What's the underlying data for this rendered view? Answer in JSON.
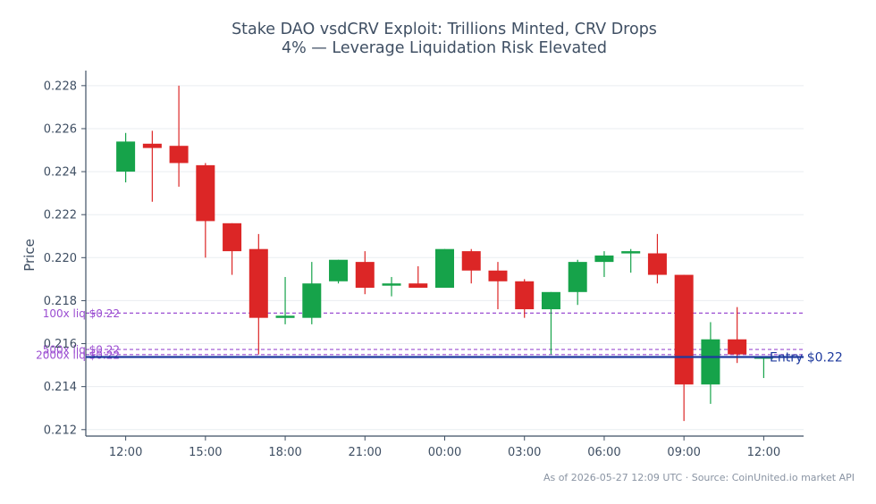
{
  "chart_data": {
    "type": "candlestick",
    "title_lines": [
      "Stake DAO vsdCRV Exploit: Trillions Minted, CRV Drops",
      "4% — Leverage Liquidation Risk Elevated"
    ],
    "ylabel": "Price",
    "xlabel": "",
    "ylim": [
      0.2117,
      0.2287
    ],
    "y_ticks": [
      0.212,
      0.214,
      0.216,
      0.218,
      0.22,
      0.222,
      0.224,
      0.226,
      0.228
    ],
    "y_tick_labels": [
      "0.212",
      "0.214",
      "0.216",
      "0.218",
      "0.220",
      "0.222",
      "0.224",
      "0.226",
      "0.228"
    ],
    "x_range_hours": [
      -1.5,
      25.5
    ],
    "x_ticks": [
      {
        "hour": 0,
        "label": "12:00"
      },
      {
        "hour": 3,
        "label": "15:00"
      },
      {
        "hour": 6,
        "label": "18:00"
      },
      {
        "hour": 9,
        "label": "21:00"
      },
      {
        "hour": 12,
        "label": "00:00"
      },
      {
        "hour": 15,
        "label": "03:00"
      },
      {
        "hour": 18,
        "label": "06:00"
      },
      {
        "hour": 21,
        "label": "09:00"
      },
      {
        "hour": 24,
        "label": "12:00"
      }
    ],
    "grid": true,
    "colors": {
      "up": "#16a34a",
      "down": "#dc2626",
      "liquidation": "#9b4dd1",
      "entry": "#1e3a9e",
      "axis": "#3f4f63",
      "grid": "#e9edf1"
    },
    "candles": [
      {
        "hour": 0,
        "open": 0.224,
        "high": 0.2258,
        "low": 0.2235,
        "close": 0.2254
      },
      {
        "hour": 1,
        "open": 0.2253,
        "high": 0.2259,
        "low": 0.2226,
        "close": 0.2251
      },
      {
        "hour": 2,
        "open": 0.2252,
        "high": 0.228,
        "low": 0.2233,
        "close": 0.2244
      },
      {
        "hour": 3,
        "open": 0.2243,
        "high": 0.2244,
        "low": 0.22,
        "close": 0.2217
      },
      {
        "hour": 4,
        "open": 0.2216,
        "high": 0.2216,
        "low": 0.2192,
        "close": 0.2203
      },
      {
        "hour": 5,
        "open": 0.2204,
        "high": 0.2211,
        "low": 0.2155,
        "close": 0.2172
      },
      {
        "hour": 6,
        "open": 0.2172,
        "high": 0.2191,
        "low": 0.2169,
        "close": 0.2173
      },
      {
        "hour": 7,
        "open": 0.2172,
        "high": 0.2198,
        "low": 0.2169,
        "close": 0.2188
      },
      {
        "hour": 8,
        "open": 0.2189,
        "high": 0.2199,
        "low": 0.2188,
        "close": 0.2199
      },
      {
        "hour": 9,
        "open": 0.2198,
        "high": 0.2203,
        "low": 0.2183,
        "close": 0.2186
      },
      {
        "hour": 10,
        "open": 0.2187,
        "high": 0.2191,
        "low": 0.2182,
        "close": 0.2188
      },
      {
        "hour": 11,
        "open": 0.2188,
        "high": 0.2196,
        "low": 0.2186,
        "close": 0.2186
      },
      {
        "hour": 12,
        "open": 0.2186,
        "high": 0.2204,
        "low": 0.2186,
        "close": 0.2204
      },
      {
        "hour": 13,
        "open": 0.2203,
        "high": 0.2204,
        "low": 0.2188,
        "close": 0.2194
      },
      {
        "hour": 14,
        "open": 0.2194,
        "high": 0.2198,
        "low": 0.2176,
        "close": 0.2189
      },
      {
        "hour": 15,
        "open": 0.2189,
        "high": 0.219,
        "low": 0.2172,
        "close": 0.2176
      },
      {
        "hour": 16,
        "open": 0.2176,
        "high": 0.2184,
        "low": 0.2155,
        "close": 0.2184
      },
      {
        "hour": 17,
        "open": 0.2184,
        "high": 0.2199,
        "low": 0.2178,
        "close": 0.2198
      },
      {
        "hour": 18,
        "open": 0.2198,
        "high": 0.2203,
        "low": 0.2191,
        "close": 0.2201
      },
      {
        "hour": 19,
        "open": 0.2202,
        "high": 0.2204,
        "low": 0.2193,
        "close": 0.2203
      },
      {
        "hour": 20,
        "open": 0.2202,
        "high": 0.2211,
        "low": 0.2188,
        "close": 0.2192
      },
      {
        "hour": 21,
        "open": 0.2192,
        "high": 0.2192,
        "low": 0.2124,
        "close": 0.2141
      },
      {
        "hour": 22,
        "open": 0.2141,
        "high": 0.217,
        "low": 0.2132,
        "close": 0.2162
      },
      {
        "hour": 23,
        "open": 0.2162,
        "high": 0.2177,
        "low": 0.2151,
        "close": 0.2155
      },
      {
        "hour": 24,
        "open": 0.2154,
        "high": 0.2154,
        "low": 0.2144,
        "close": 0.2154
      }
    ],
    "liquidation_levels": [
      {
        "price": 0.21742,
        "label": "100x liq $0.22"
      },
      {
        "price": 0.21573,
        "label": "500x liq $0.22"
      },
      {
        "price": 0.21549,
        "label": "2000x liq $0.22"
      }
    ],
    "entry": {
      "price": 0.21538,
      "label": "Entry $0.22"
    }
  },
  "footer": "As of 2026-05-27 12:09 UTC · Source: CoinUnited.io market API"
}
